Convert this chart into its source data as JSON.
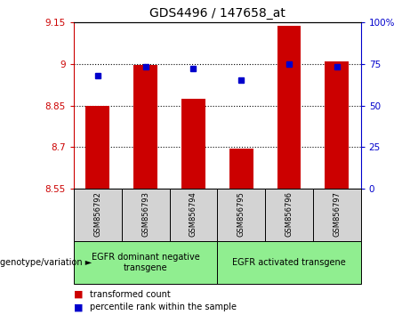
{
  "title": "GDS4496 / 147658_at",
  "samples": [
    "GSM856792",
    "GSM856793",
    "GSM856794",
    "GSM856795",
    "GSM856796",
    "GSM856797"
  ],
  "bar_values": [
    8.848,
    8.995,
    8.875,
    8.695,
    9.135,
    9.01
  ],
  "percentile_values": [
    68,
    73,
    72,
    65,
    75,
    73
  ],
  "ylim_left": [
    8.55,
    9.15
  ],
  "ylim_right": [
    0,
    100
  ],
  "yticks_left": [
    8.55,
    8.7,
    8.85,
    9.0,
    9.15
  ],
  "yticks_right": [
    0,
    25,
    50,
    75,
    100
  ],
  "ytick_labels_left": [
    "8.55",
    "8.7",
    "8.85",
    "9",
    "9.15"
  ],
  "ytick_labels_right": [
    "0",
    "25",
    "50",
    "75",
    "100%"
  ],
  "grid_values": [
    8.7,
    8.85,
    9.0
  ],
  "bar_color": "#cc0000",
  "dot_color": "#0000cc",
  "bar_bottom": 8.55,
  "group1_label": "EGFR dominant negative\ntransgene",
  "group2_label": "EGFR activated transgene",
  "group1_indices": [
    0,
    1,
    2
  ],
  "group2_indices": [
    3,
    4,
    5
  ],
  "xlabel_left": "genotype/variation",
  "legend_item1_label": "transformed count",
  "legend_item1_color": "#cc0000",
  "legend_item2_label": "percentile rank within the sample",
  "legend_item2_color": "#0000cc",
  "left_yaxis_color": "#cc0000",
  "right_yaxis_color": "#0000cc",
  "tick_area_color": "#d3d3d3",
  "group_area_color": "#90ee90",
  "bar_width": 0.5
}
